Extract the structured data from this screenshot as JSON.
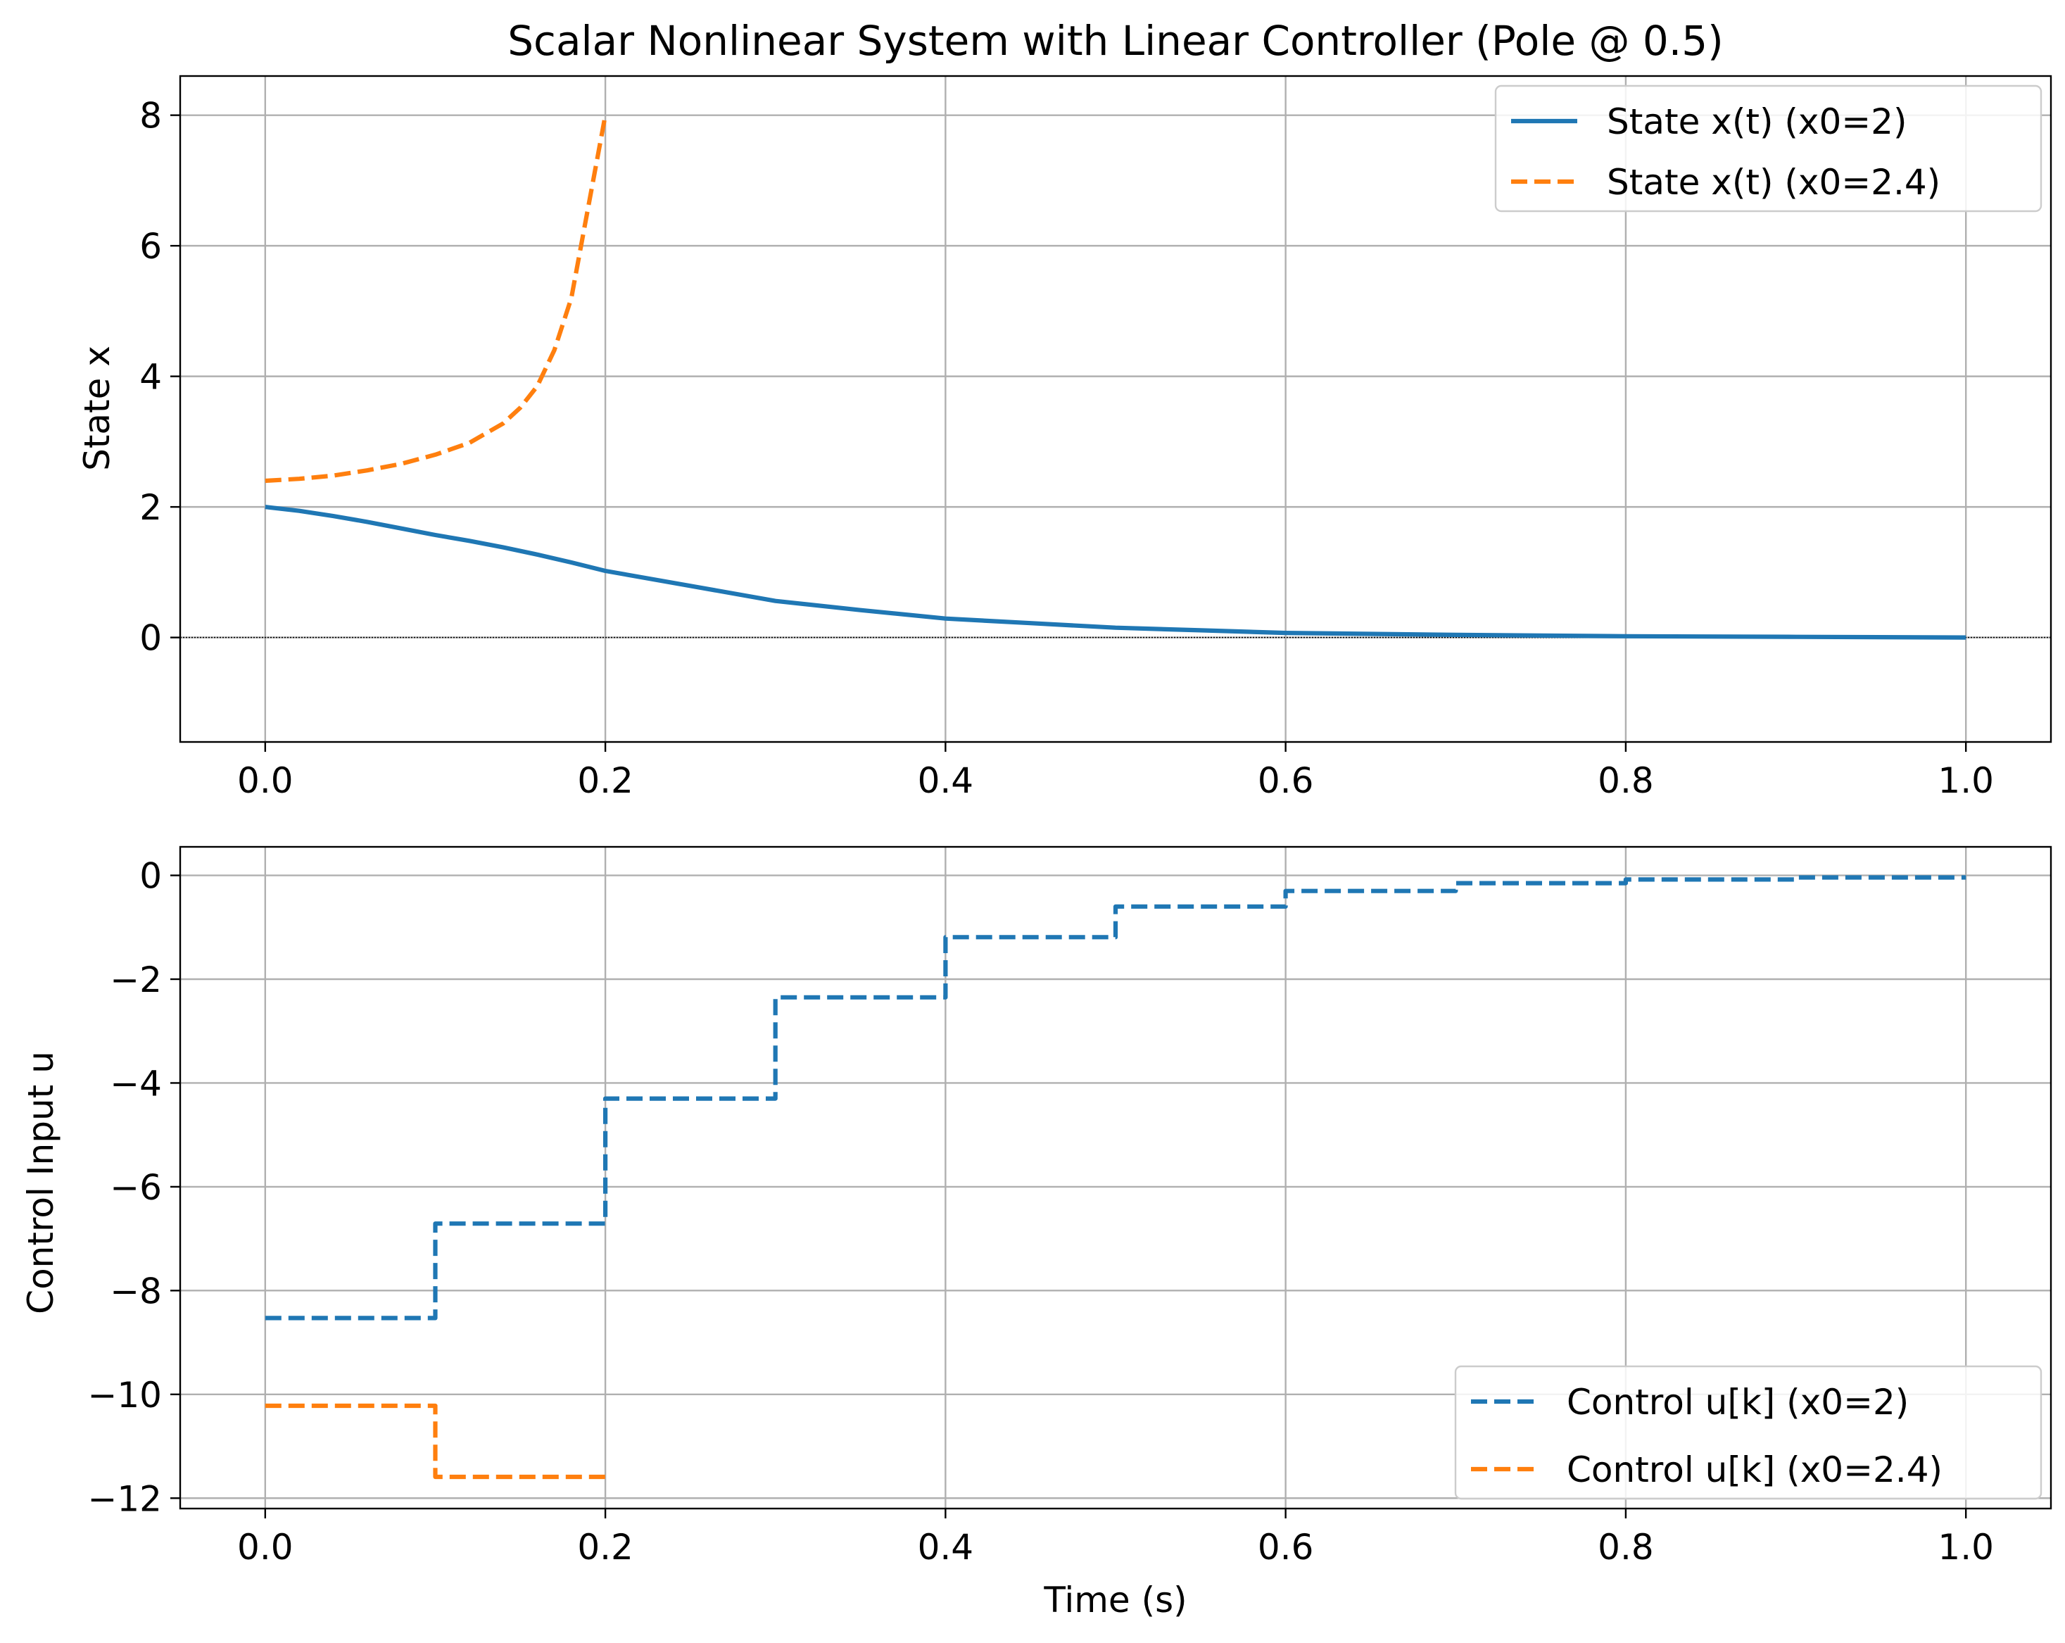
{
  "chart_data": [
    {
      "type": "line",
      "title": "Scalar Nonlinear System with Linear Controller (Pole @ 0.5)",
      "xlabel": "",
      "ylabel": "State x",
      "xlim": [
        -0.05,
        1.05
      ],
      "ylim": [
        -1.6,
        8.6
      ],
      "xticks": [
        0.0,
        0.2,
        0.4,
        0.6,
        0.8,
        1.0
      ],
      "xtick_labels": [
        "0.0",
        "0.2",
        "0.4",
        "0.6",
        "0.8",
        "1.0"
      ],
      "yticks": [
        0,
        2,
        4,
        6,
        8
      ],
      "ytick_labels": [
        "0",
        "2",
        "4",
        "6",
        "8"
      ],
      "grid": true,
      "zero_line": true,
      "legend": "top-right",
      "series": [
        {
          "name": "State x(t) (x0=2)",
          "color": "#1f77b4",
          "dash": "solid",
          "x": [
            0.0,
            0.02,
            0.04,
            0.06,
            0.08,
            0.1,
            0.12,
            0.14,
            0.16,
            0.18,
            0.2,
            0.25,
            0.3,
            0.35,
            0.4,
            0.45,
            0.5,
            0.55,
            0.6,
            0.7,
            0.8,
            0.9,
            1.0
          ],
          "y": [
            2.0,
            1.94,
            1.86,
            1.77,
            1.67,
            1.57,
            1.48,
            1.38,
            1.27,
            1.15,
            1.02,
            0.79,
            0.56,
            0.42,
            0.29,
            0.22,
            0.15,
            0.11,
            0.07,
            0.04,
            0.02,
            0.01,
            0.0
          ]
        },
        {
          "name": "State x(t) (x0=2.4)",
          "color": "#ff7f0e",
          "dash": "dashed",
          "x": [
            0.0,
            0.02,
            0.04,
            0.06,
            0.08,
            0.1,
            0.12,
            0.14,
            0.15,
            0.16,
            0.17,
            0.18,
            0.19,
            0.195,
            0.2
          ],
          "y": [
            2.4,
            2.43,
            2.48,
            2.56,
            2.66,
            2.8,
            2.98,
            3.28,
            3.52,
            3.85,
            4.4,
            5.2,
            6.6,
            7.3,
            8.0
          ]
        }
      ]
    },
    {
      "type": "line",
      "title": "",
      "xlabel": "Time (s)",
      "ylabel": "Control Input u",
      "xlim": [
        -0.05,
        1.05
      ],
      "ylim": [
        -12.2,
        0.55
      ],
      "xticks": [
        0.0,
        0.2,
        0.4,
        0.6,
        0.8,
        1.0
      ],
      "xtick_labels": [
        "0.0",
        "0.2",
        "0.4",
        "0.6",
        "0.8",
        "1.0"
      ],
      "yticks": [
        0,
        -2,
        -4,
        -6,
        -8,
        -10,
        -12
      ],
      "ytick_labels": [
        "0",
        "−2",
        "−4",
        "−6",
        "−8",
        "−10",
        "−12"
      ],
      "grid": true,
      "legend": "bottom-right",
      "series": [
        {
          "name": "Control u[k] (x0=2)",
          "color": "#1f77b4",
          "dash": "dashed",
          "step": "post",
          "x": [
            0.0,
            0.1,
            0.2,
            0.3,
            0.4,
            0.5,
            0.6,
            0.7,
            0.8,
            0.9,
            1.0
          ],
          "y": [
            -8.53,
            -6.71,
            -4.3,
            -2.35,
            -1.19,
            -0.6,
            -0.3,
            -0.15,
            -0.08,
            -0.04,
            -0.04
          ]
        },
        {
          "name": "Control u[k] (x0=2.4)",
          "color": "#ff7f0e",
          "dash": "dashed",
          "step": "post",
          "x": [
            0.0,
            0.1,
            0.2
          ],
          "y": [
            -10.22,
            -11.59,
            -11.59
          ]
        }
      ]
    }
  ]
}
